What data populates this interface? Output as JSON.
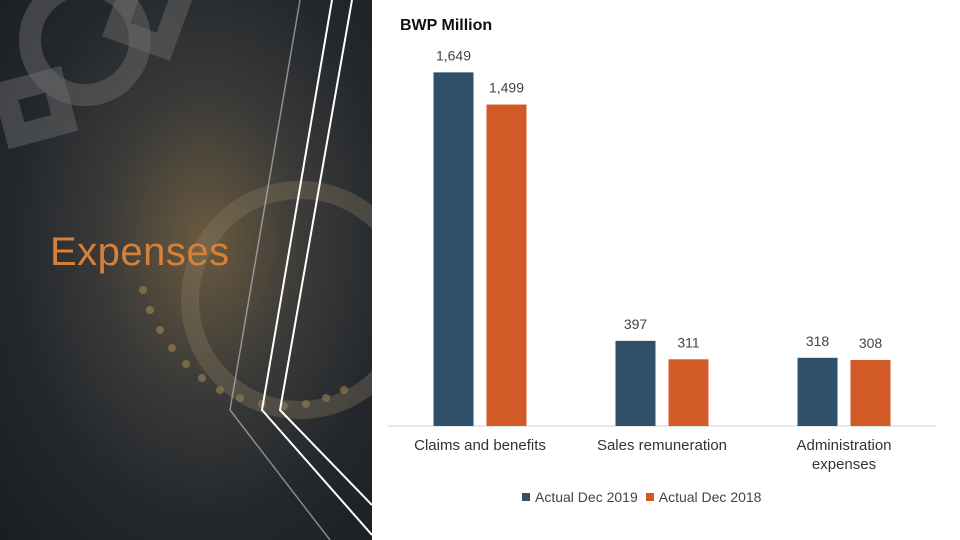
{
  "slide": {
    "title": "Expenses",
    "unit_label": "BWP Million"
  },
  "colors": {
    "series_2019": "#2f5068",
    "series_2018": "#d25a27",
    "title_accent": "#d7803a"
  },
  "chart_data": {
    "type": "bar",
    "categories": [
      "Claims and benefits",
      "Sales remuneration",
      "Administration expenses"
    ],
    "series": [
      {
        "name": "Actual Dec 2019",
        "values": [
          1649,
          397,
          318
        ],
        "labels": [
          "1,649",
          "397",
          "318"
        ]
      },
      {
        "name": "Actual Dec 2018",
        "values": [
          1499,
          311,
          308
        ],
        "labels": [
          "1,499",
          "311",
          "308"
        ]
      }
    ],
    "title": "",
    "ylabel": "BWP Million",
    "ylim": [
      0,
      1800
    ],
    "grid": false,
    "legend": "bottom"
  }
}
